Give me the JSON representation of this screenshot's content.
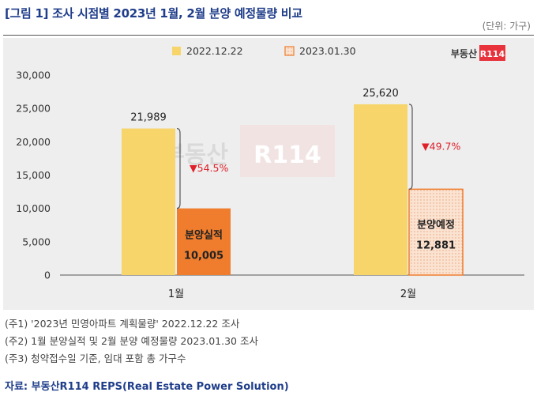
{
  "header": {
    "title": "[그림 1] 조사 시점별 2023년 1월, 2월 분양 예정물량 비교",
    "unit": "(단위: 가구)"
  },
  "logo": {
    "text": "부동산",
    "badge": "R114"
  },
  "watermark": {
    "text": "부동산",
    "badge": "R114"
  },
  "chart_data": {
    "type": "bar",
    "categories": [
      "1월",
      "2월"
    ],
    "series": [
      {
        "name": "2022.12.22",
        "values": [
          21989,
          25620
        ],
        "color": "#f7d56b"
      },
      {
        "name": "2023.01.30",
        "values": [
          10005,
          12881
        ],
        "color": "#ef7d2d"
      }
    ],
    "ylim": [
      0,
      30000
    ],
    "yticks": [
      "0",
      "5,000",
      "10,000",
      "15,000",
      "20,000",
      "25,000",
      "30,000"
    ],
    "data_labels": {
      "top": [
        "21,989",
        "25,620"
      ],
      "inside_title": [
        "분양실적",
        "분양예정"
      ],
      "inside_value": [
        "10,005",
        "12,881"
      ]
    },
    "change_labels": [
      "▼54.5%",
      "▼49.7%"
    ],
    "legend_position": "top-center",
    "grid": false,
    "colors": {
      "change_text": "#e0202a",
      "second_series_pattern_border": "#ef7d2d",
      "second_series_pattern_fill": "#fbe3d2"
    }
  },
  "notes": [
    "(주1) '2023년 민영아파트 계획물량' 2022.12.22 조사",
    "(주2) 1월 분양실적 및 2월 분양 예정물량 2023.01.30 조사",
    "(주3) 청약접수일 기준, 임대 포함 총 가구수"
  ],
  "source": "자료: 부동산R114 REPS(Real Estate Power Solution)"
}
